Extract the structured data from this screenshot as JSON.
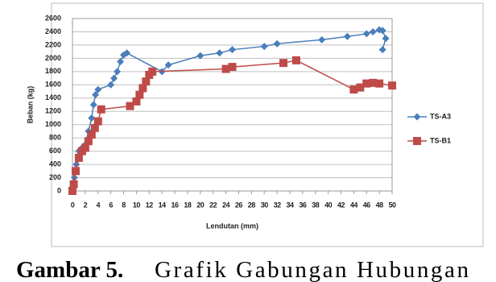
{
  "chart_data": {
    "type": "line",
    "x_label": "Lendutan (mm)",
    "y_label": "Beban (kg)",
    "xlim": [
      0,
      50
    ],
    "xticks": [
      0,
      2,
      4,
      6,
      8,
      10,
      12,
      14,
      16,
      18,
      20,
      22,
      24,
      26,
      28,
      30,
      32,
      34,
      36,
      38,
      40,
      42,
      44,
      46,
      48,
      50
    ],
    "ylim": [
      0,
      2600
    ],
    "yticks": [
      0,
      200,
      400,
      600,
      800,
      1000,
      1200,
      1400,
      1600,
      1800,
      2000,
      2200,
      2400,
      2600
    ],
    "grid": true,
    "legend": "right",
    "series": [
      {
        "name": "TS-A3",
        "color": "#4a7ebb",
        "marker": "diamond",
        "x": [
          0,
          0.3,
          0.6,
          1,
          1.5,
          2,
          2.5,
          3,
          3.3,
          3.6,
          4,
          6,
          6.5,
          7,
          7.5,
          8,
          8.5,
          14,
          15,
          20,
          23,
          25,
          30,
          32,
          39,
          43,
          46,
          47,
          48,
          48.5,
          49,
          48.5
        ],
        "values": [
          0,
          200,
          400,
          600,
          650,
          700,
          900,
          1100,
          1300,
          1450,
          1530,
          1600,
          1700,
          1800,
          1950,
          2050,
          2080,
          1800,
          1900,
          2040,
          2080,
          2130,
          2180,
          2220,
          2280,
          2330,
          2370,
          2400,
          2430,
          2420,
          2300,
          2130
        ]
      },
      {
        "name": "TS-B1",
        "color": "#be4b48",
        "marker": "square",
        "x": [
          0,
          0.2,
          0.5,
          1,
          1.5,
          2,
          2.5,
          3,
          3.5,
          4,
          4.5,
          9,
          10,
          10.5,
          11,
          11.5,
          12,
          12.5,
          24,
          25,
          33,
          35,
          44,
          45,
          46,
          47,
          48,
          50
        ],
        "values": [
          0,
          100,
          300,
          500,
          600,
          650,
          750,
          850,
          950,
          1050,
          1230,
          1280,
          1350,
          1450,
          1550,
          1650,
          1750,
          1800,
          1840,
          1870,
          1930,
          1970,
          1530,
          1560,
          1620,
          1630,
          1620,
          1590
        ]
      }
    ]
  },
  "caption": {
    "label": "Gambar 5.",
    "text": "Grafik Gabungan Hubungan"
  }
}
